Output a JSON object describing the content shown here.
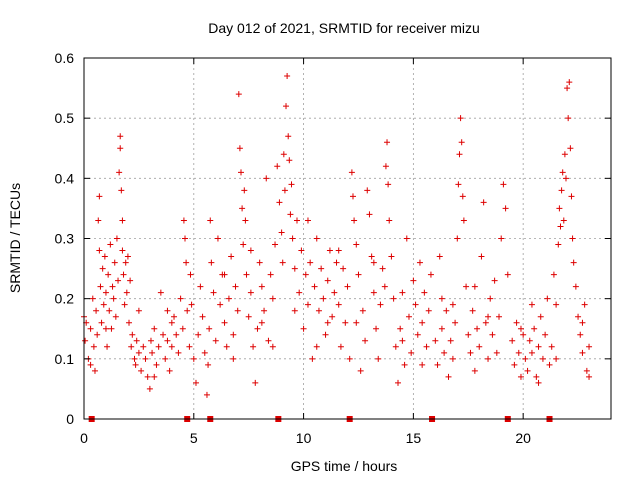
{
  "chart_data": {
    "type": "scatter",
    "title": "Day 012 of 2021, SRMTID for receiver mizu",
    "xlabel": "GPS time / hours",
    "ylabel": "SRMTID / TECUs",
    "xlim": [
      0,
      24
    ],
    "ylim": [
      0,
      0.6
    ],
    "xticks": [
      0,
      5,
      10,
      15,
      20
    ],
    "yticks": [
      0,
      0.1,
      0.2,
      0.3,
      0.4,
      0.5,
      0.6
    ],
    "xtick_labels": [
      "0",
      "5",
      "10",
      "15",
      "20"
    ],
    "ytick_labels": [
      "0",
      "0.1",
      "0.2",
      "0.3",
      "0.4",
      "0.5",
      "0.6"
    ],
    "grid": true,
    "marker": "+",
    "color": "#dd0000",
    "markers_at_zero_hours": [
      0.35,
      4.7,
      5.75,
      8.85,
      12.1,
      15.85,
      19.3,
      21.2
    ],
    "series": [
      {
        "name": "SRMTID",
        "points": [
          [
            0.0,
            0.17
          ],
          [
            0.05,
            0.13
          ],
          [
            0.1,
            0.16
          ],
          [
            0.2,
            0.1
          ],
          [
            0.3,
            0.15
          ],
          [
            0.4,
            0.2
          ],
          [
            0.45,
            0.12
          ],
          [
            0.5,
            0.08
          ],
          [
            0.55,
            0.18
          ],
          [
            0.6,
            0.14
          ],
          [
            0.65,
            0.33
          ],
          [
            0.7,
            0.37
          ],
          [
            0.7,
            0.28
          ],
          [
            0.75,
            0.22
          ],
          [
            0.8,
            0.16
          ],
          [
            0.85,
            0.25
          ],
          [
            0.9,
            0.19
          ],
          [
            0.95,
            0.27
          ],
          [
            1.0,
            0.21
          ],
          [
            1.05,
            0.12
          ],
          [
            1.1,
            0.24
          ],
          [
            1.15,
            0.18
          ],
          [
            1.2,
            0.29
          ],
          [
            1.25,
            0.15
          ],
          [
            1.3,
            0.22
          ],
          [
            1.35,
            0.2
          ],
          [
            1.4,
            0.26
          ],
          [
            1.45,
            0.17
          ],
          [
            1.5,
            0.3
          ],
          [
            1.55,
            0.23
          ],
          [
            1.6,
            0.41
          ],
          [
            1.65,
            0.47
          ],
          [
            1.65,
            0.45
          ],
          [
            1.7,
            0.38
          ],
          [
            1.75,
            0.33
          ],
          [
            1.75,
            0.28
          ],
          [
            1.8,
            0.24
          ],
          [
            1.85,
            0.19
          ],
          [
            1.9,
            0.26
          ],
          [
            1.95,
            0.21
          ],
          [
            2.0,
            0.27
          ],
          [
            2.05,
            0.16
          ],
          [
            2.1,
            0.23
          ],
          [
            2.15,
            0.12
          ],
          [
            2.2,
            0.14
          ],
          [
            2.3,
            0.1
          ],
          [
            2.35,
            0.09
          ],
          [
            2.4,
            0.13
          ],
          [
            2.5,
            0.11
          ],
          [
            2.6,
            0.08
          ],
          [
            2.7,
            0.12
          ],
          [
            2.8,
            0.1
          ],
          [
            2.9,
            0.07
          ],
          [
            3.0,
            0.05
          ],
          [
            3.05,
            0.13
          ],
          [
            3.1,
            0.11
          ],
          [
            3.2,
            0.15
          ],
          [
            3.3,
            0.09
          ],
          [
            3.4,
            0.12
          ],
          [
            3.5,
            0.21
          ],
          [
            3.6,
            0.14
          ],
          [
            3.7,
            0.1
          ],
          [
            3.8,
            0.13
          ],
          [
            3.9,
            0.08
          ],
          [
            4.0,
            0.12
          ],
          [
            4.1,
            0.17
          ],
          [
            4.2,
            0.14
          ],
          [
            4.3,
            0.11
          ],
          [
            4.4,
            0.2
          ],
          [
            4.5,
            0.15
          ],
          [
            4.55,
            0.33
          ],
          [
            4.6,
            0.3
          ],
          [
            4.65,
            0.26
          ],
          [
            4.7,
            0.18
          ],
          [
            4.8,
            0.12
          ],
          [
            4.85,
            0.24
          ],
          [
            4.9,
            0.19
          ],
          [
            5.0,
            0.1
          ],
          [
            5.1,
            0.06
          ],
          [
            5.2,
            0.14
          ],
          [
            5.3,
            0.22
          ],
          [
            5.4,
            0.17
          ],
          [
            5.5,
            0.11
          ],
          [
            5.6,
            0.04
          ],
          [
            5.65,
            0.09
          ],
          [
            5.7,
            0.15
          ],
          [
            5.75,
            0.33
          ],
          [
            5.8,
            0.26
          ],
          [
            5.9,
            0.21
          ],
          [
            6.0,
            0.13
          ],
          [
            6.1,
            0.3
          ],
          [
            6.2,
            0.19
          ],
          [
            6.3,
            0.24
          ],
          [
            6.4,
            0.16
          ],
          [
            6.5,
            0.12
          ],
          [
            6.6,
            0.2
          ],
          [
            6.7,
            0.27
          ],
          [
            6.8,
            0.14
          ],
          [
            6.9,
            0.22
          ],
          [
            7.0,
            0.18
          ],
          [
            7.05,
            0.54
          ],
          [
            7.1,
            0.45
          ],
          [
            7.15,
            0.41
          ],
          [
            7.2,
            0.35
          ],
          [
            7.25,
            0.29
          ],
          [
            7.3,
            0.38
          ],
          [
            7.35,
            0.33
          ],
          [
            7.4,
            0.24
          ],
          [
            7.5,
            0.17
          ],
          [
            7.6,
            0.21
          ],
          [
            7.7,
            0.12
          ],
          [
            7.8,
            0.06
          ],
          [
            7.9,
            0.15
          ],
          [
            8.0,
            0.26
          ],
          [
            8.1,
            0.22
          ],
          [
            8.2,
            0.18
          ],
          [
            8.3,
            0.4
          ],
          [
            8.4,
            0.13
          ],
          [
            8.5,
            0.24
          ],
          [
            8.6,
            0.2
          ],
          [
            8.7,
            0.29
          ],
          [
            8.8,
            0.42
          ],
          [
            8.9,
            0.36
          ],
          [
            9.0,
            0.31
          ],
          [
            9.05,
            0.26
          ],
          [
            9.1,
            0.44
          ],
          [
            9.15,
            0.38
          ],
          [
            9.2,
            0.52
          ],
          [
            9.25,
            0.57
          ],
          [
            9.3,
            0.47
          ],
          [
            9.35,
            0.43
          ],
          [
            9.4,
            0.34
          ],
          [
            9.45,
            0.39
          ],
          [
            9.5,
            0.3
          ],
          [
            9.6,
            0.25
          ],
          [
            9.7,
            0.33
          ],
          [
            9.8,
            0.21
          ],
          [
            9.9,
            0.28
          ],
          [
            10.0,
            0.15
          ],
          [
            10.1,
            0.24
          ],
          [
            10.2,
            0.19
          ],
          [
            10.3,
            0.26
          ],
          [
            10.4,
            0.1
          ],
          [
            10.5,
            0.22
          ],
          [
            10.6,
            0.3
          ],
          [
            10.7,
            0.18
          ],
          [
            10.8,
            0.25
          ],
          [
            10.9,
            0.2
          ],
          [
            11.0,
            0.14
          ],
          [
            11.1,
            0.23
          ],
          [
            11.2,
            0.28
          ],
          [
            11.3,
            0.17
          ],
          [
            11.4,
            0.21
          ],
          [
            11.5,
            0.26
          ],
          [
            11.6,
            0.19
          ],
          [
            11.7,
            0.12
          ],
          [
            11.8,
            0.25
          ],
          [
            11.9,
            0.16
          ],
          [
            12.0,
            0.22
          ],
          [
            12.1,
            0.1
          ],
          [
            12.2,
            0.41
          ],
          [
            12.25,
            0.37
          ],
          [
            12.3,
            0.33
          ],
          [
            12.4,
            0.29
          ],
          [
            12.5,
            0.24
          ],
          [
            12.6,
            0.08
          ],
          [
            12.7,
            0.18
          ],
          [
            12.8,
            0.13
          ],
          [
            12.9,
            0.38
          ],
          [
            13.0,
            0.34
          ],
          [
            13.1,
            0.27
          ],
          [
            13.2,
            0.21
          ],
          [
            13.3,
            0.15
          ],
          [
            13.4,
            0.1
          ],
          [
            13.5,
            0.19
          ],
          [
            13.6,
            0.25
          ],
          [
            13.7,
            0.22
          ],
          [
            13.75,
            0.42
          ],
          [
            13.8,
            0.46
          ],
          [
            13.85,
            0.39
          ],
          [
            13.9,
            0.33
          ],
          [
            14.0,
            0.27
          ],
          [
            14.1,
            0.2
          ],
          [
            14.2,
            0.12
          ],
          [
            14.3,
            0.06
          ],
          [
            14.4,
            0.15
          ],
          [
            14.5,
            0.21
          ],
          [
            14.6,
            0.09
          ],
          [
            14.7,
            0.3
          ],
          [
            14.8,
            0.17
          ],
          [
            14.9,
            0.11
          ],
          [
            15.0,
            0.23
          ],
          [
            15.1,
            0.19
          ],
          [
            15.2,
            0.14
          ],
          [
            15.3,
            0.26
          ],
          [
            15.4,
            0.16
          ],
          [
            15.5,
            0.21
          ],
          [
            15.6,
            0.12
          ],
          [
            15.7,
            0.18
          ],
          [
            15.8,
            0.24
          ],
          [
            16.0,
            0.13
          ],
          [
            16.1,
            0.09
          ],
          [
            16.2,
            0.27
          ],
          [
            16.3,
            0.15
          ],
          [
            16.4,
            0.11
          ],
          [
            16.5,
            0.18
          ],
          [
            16.6,
            0.07
          ],
          [
            16.7,
            0.13
          ],
          [
            16.8,
            0.1
          ],
          [
            16.9,
            0.16
          ],
          [
            17.0,
            0.3
          ],
          [
            17.05,
            0.39
          ],
          [
            17.1,
            0.44
          ],
          [
            17.15,
            0.5
          ],
          [
            17.2,
            0.46
          ],
          [
            17.25,
            0.37
          ],
          [
            17.3,
            0.33
          ],
          [
            17.4,
            0.22
          ],
          [
            17.5,
            0.14
          ],
          [
            17.6,
            0.11
          ],
          [
            17.7,
            0.18
          ],
          [
            17.8,
            0.08
          ],
          [
            17.9,
            0.15
          ],
          [
            18.0,
            0.12
          ],
          [
            18.1,
            0.27
          ],
          [
            18.2,
            0.36
          ],
          [
            18.3,
            0.16
          ],
          [
            18.4,
            0.1
          ],
          [
            18.5,
            0.2
          ],
          [
            18.6,
            0.14
          ],
          [
            18.7,
            0.23
          ],
          [
            18.8,
            0.11
          ],
          [
            18.9,
            0.17
          ],
          [
            19.0,
            0.3
          ],
          [
            19.1,
            0.39
          ],
          [
            19.2,
            0.35
          ],
          [
            19.3,
            0.24
          ],
          [
            19.5,
            0.13
          ],
          [
            19.6,
            0.09
          ],
          [
            19.7,
            0.16
          ],
          [
            19.8,
            0.11
          ],
          [
            19.9,
            0.07
          ],
          [
            20.0,
            0.14
          ],
          [
            20.1,
            0.1
          ],
          [
            20.2,
            0.08
          ],
          [
            20.3,
            0.13
          ],
          [
            20.4,
            0.11
          ],
          [
            20.5,
            0.15
          ],
          [
            20.6,
            0.07
          ],
          [
            20.7,
            0.12
          ],
          [
            20.8,
            0.17
          ],
          [
            20.9,
            0.1
          ],
          [
            21.0,
            0.14
          ],
          [
            21.1,
            0.2
          ],
          [
            21.2,
            0.09
          ],
          [
            21.3,
            0.12
          ],
          [
            21.4,
            0.24
          ],
          [
            21.5,
            0.19
          ],
          [
            21.6,
            0.29
          ],
          [
            21.65,
            0.35
          ],
          [
            21.7,
            0.32
          ],
          [
            21.75,
            0.38
          ],
          [
            21.8,
            0.41
          ],
          [
            21.85,
            0.33
          ],
          [
            21.9,
            0.44
          ],
          [
            21.95,
            0.4
          ],
          [
            22.0,
            0.55
          ],
          [
            22.05,
            0.5
          ],
          [
            22.1,
            0.56
          ],
          [
            22.15,
            0.45
          ],
          [
            22.2,
            0.37
          ],
          [
            22.25,
            0.3
          ],
          [
            22.3,
            0.26
          ],
          [
            22.4,
            0.22
          ],
          [
            22.5,
            0.17
          ],
          [
            22.6,
            0.14
          ],
          [
            22.7,
            0.11
          ],
          [
            22.8,
            0.19
          ],
          [
            22.9,
            0.08
          ],
          [
            23.0,
            0.12
          ],
          [
            0.3,
            0.09
          ],
          [
            1.0,
            0.15
          ],
          [
            2.5,
            0.18
          ],
          [
            3.2,
            0.07
          ],
          [
            3.8,
            0.18
          ],
          [
            4.0,
            0.16
          ],
          [
            6.4,
            0.24
          ],
          [
            6.8,
            0.1
          ],
          [
            7.6,
            0.28
          ],
          [
            8.1,
            0.16
          ],
          [
            8.6,
            0.12
          ],
          [
            9.6,
            0.18
          ],
          [
            10.2,
            0.33
          ],
          [
            10.6,
            0.12
          ],
          [
            11.1,
            0.16
          ],
          [
            11.6,
            0.28
          ],
          [
            12.4,
            0.16
          ],
          [
            13.2,
            0.26
          ],
          [
            14.5,
            0.13
          ],
          [
            15.4,
            0.09
          ],
          [
            16.3,
            0.2
          ],
          [
            16.8,
            0.19
          ],
          [
            17.8,
            0.22
          ],
          [
            18.4,
            0.17
          ],
          [
            19.9,
            0.15
          ],
          [
            20.4,
            0.19
          ],
          [
            20.7,
            0.06
          ],
          [
            21.5,
            0.1
          ],
          [
            22.7,
            0.16
          ],
          [
            23.0,
            0.07
          ]
        ]
      }
    ]
  }
}
